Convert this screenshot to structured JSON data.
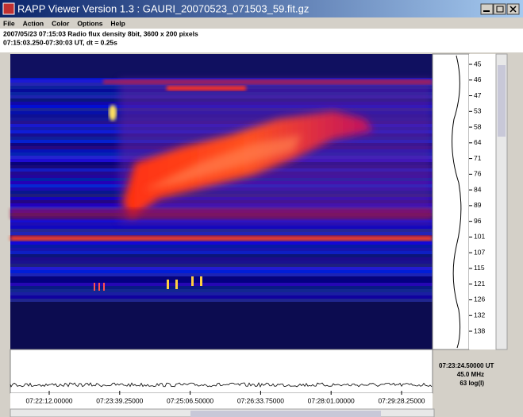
{
  "window": {
    "title": "RAPP Viewer Version 1.3 : GAURI_20070523_071503_59.fit.gz"
  },
  "menu": [
    "File",
    "Action",
    "Color",
    "Options",
    "Help"
  ],
  "info": [
    "2007/05/23 07:15:03 Radio flux density 8bit, 3600 x 200 pixels",
    "07:15:03.250-07:30:03 UT, dt = 0.25s"
  ],
  "frequency_labels": [
    45,
    46,
    47,
    53,
    58,
    64,
    71,
    76,
    84,
    89,
    96,
    101,
    107,
    115,
    121,
    126,
    132,
    138
  ],
  "time_labels": [
    "07:22:12.00000",
    "07:23:39.25000",
    "07:25:06.50000",
    "07:26:33.75000",
    "07:28:01.00000",
    "07:29:28.25000"
  ],
  "status": [
    "07:23:24.50000 UT",
    "45.0 MHz",
    "63 log(I)"
  ]
}
